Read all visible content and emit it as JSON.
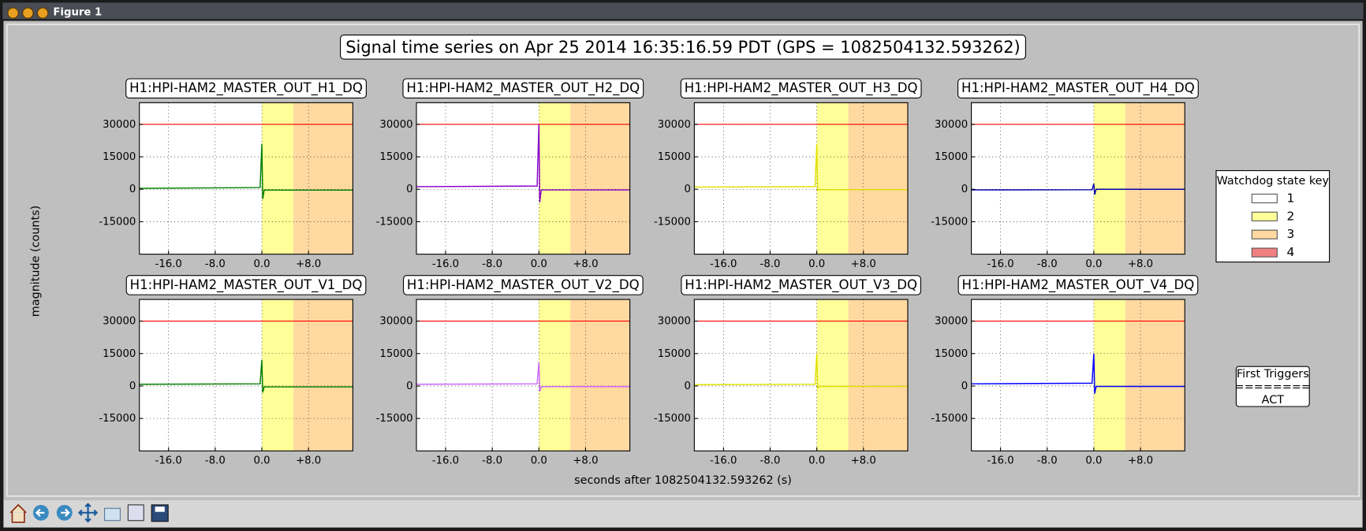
{
  "window": {
    "title": "Figure 1"
  },
  "figure": {
    "title": "Signal time series on Apr 25 2014 16:35:16.59 PDT (GPS = 1082504132.593262)",
    "xlabel": "seconds after 1082504132.593262 (s)",
    "ylabel": "magnitude (counts)",
    "legend": {
      "title": "Watchdog state key",
      "entries": [
        {
          "label": "1",
          "color": "#ffffff"
        },
        {
          "label": "2",
          "color": "#ffff99"
        },
        {
          "label": "3",
          "color": "#ffd9a0"
        },
        {
          "label": "4",
          "color": "#f08080"
        }
      ]
    },
    "annotation": [
      "First Triggers",
      "========",
      "ACT"
    ]
  },
  "chart_data": [
    {
      "type": "line",
      "title": "H1:HPI-HAM2_MASTER_OUT_H1_DQ",
      "x": [
        -21,
        -0.3,
        0,
        0.15,
        0.4,
        15.6
      ],
      "series": [
        {
          "color": "#007f00",
          "values": [
            400,
            800,
            21000,
            -4500,
            -400,
            -400
          ]
        }
      ],
      "xlim": [
        -21,
        15.6
      ],
      "ylim": [
        -30000,
        40000
      ],
      "xticks": [
        {
          "value": -16,
          "label": "-16.0"
        },
        {
          "value": -8,
          "label": "-8.0"
        },
        {
          "value": 0,
          "label": "0.0"
        },
        {
          "value": 8,
          "label": "+8.0"
        }
      ],
      "yticks": [
        -15000,
        0,
        15000,
        30000
      ],
      "grid": true,
      "threshold": 30000,
      "threshold_color": "#ff0000",
      "spans": [
        {
          "start": 0,
          "end": 5.4,
          "color": "#ffff99"
        },
        {
          "start": 5.4,
          "end": 15.6,
          "color": "#ffd9a0"
        }
      ]
    },
    {
      "type": "line",
      "title": "H1:HPI-HAM2_MASTER_OUT_H2_DQ",
      "x": [
        -21,
        -0.3,
        0,
        0.15,
        0.4,
        15.6
      ],
      "series": [
        {
          "color": "#8800cc",
          "values": [
            1200,
            1500,
            30000,
            -6000,
            -300,
            -300
          ]
        }
      ],
      "xlim": [
        -21,
        15.6
      ],
      "ylim": [
        -30000,
        40000
      ],
      "xticks": [
        {
          "value": -16,
          "label": "-16.0"
        },
        {
          "value": -8,
          "label": "-8.0"
        },
        {
          "value": 0,
          "label": "0.0"
        },
        {
          "value": 8,
          "label": "+8.0"
        }
      ],
      "yticks": [
        -15000,
        0,
        15000,
        30000
      ],
      "grid": true,
      "threshold": 30000,
      "threshold_color": "#ff0000",
      "spans": [
        {
          "start": 0,
          "end": 5.4,
          "color": "#ffff99"
        },
        {
          "start": 5.4,
          "end": 15.6,
          "color": "#ffd9a0"
        }
      ]
    },
    {
      "type": "line",
      "title": "H1:HPI-HAM2_MASTER_OUT_H3_DQ",
      "x": [
        -21,
        -0.3,
        0,
        0.15,
        0.4,
        15.6
      ],
      "series": [
        {
          "color": "#e0e000",
          "values": [
            1000,
            1200,
            21000,
            -500,
            -200,
            -200
          ]
        }
      ],
      "xlim": [
        -21,
        15.6
      ],
      "ylim": [
        -30000,
        40000
      ],
      "xticks": [
        {
          "value": -16,
          "label": "-16.0"
        },
        {
          "value": -8,
          "label": "-8.0"
        },
        {
          "value": 0,
          "label": "0.0"
        },
        {
          "value": 8,
          "label": "+8.0"
        }
      ],
      "yticks": [
        -15000,
        0,
        15000,
        30000
      ],
      "grid": true,
      "threshold": 30000,
      "threshold_color": "#ff0000",
      "spans": [
        {
          "start": 0,
          "end": 5.4,
          "color": "#ffff99"
        },
        {
          "start": 5.4,
          "end": 15.6,
          "color": "#ffd9a0"
        }
      ]
    },
    {
      "type": "line",
      "title": "H1:HPI-HAM2_MASTER_OUT_H4_DQ",
      "x": [
        -21,
        -0.3,
        0,
        0.15,
        0.4,
        15.6
      ],
      "series": [
        {
          "color": "#0000aa",
          "values": [
            -300,
            -200,
            2500,
            -2500,
            0,
            0
          ]
        }
      ],
      "xlim": [
        -21,
        15.6
      ],
      "ylim": [
        -30000,
        40000
      ],
      "xticks": [
        {
          "value": -16,
          "label": "-16.0"
        },
        {
          "value": -8,
          "label": "-8.0"
        },
        {
          "value": 0,
          "label": "0.0"
        },
        {
          "value": 8,
          "label": "+8.0"
        }
      ],
      "yticks": [
        -15000,
        0,
        15000,
        30000
      ],
      "grid": true,
      "threshold": 30000,
      "threshold_color": "#ff0000",
      "spans": [
        {
          "start": 0,
          "end": 5.4,
          "color": "#ffff99"
        },
        {
          "start": 5.4,
          "end": 15.6,
          "color": "#ffd9a0"
        }
      ]
    },
    {
      "type": "line",
      "title": "H1:HPI-HAM2_MASTER_OUT_V1_DQ",
      "x": [
        -21,
        -0.3,
        0,
        0.15,
        0.4,
        15.6
      ],
      "series": [
        {
          "color": "#007f00",
          "values": [
            800,
            1000,
            12000,
            -3000,
            -400,
            -400
          ]
        }
      ],
      "xlim": [
        -21,
        15.6
      ],
      "ylim": [
        -30000,
        40000
      ],
      "xticks": [
        {
          "value": -16,
          "label": "-16.0"
        },
        {
          "value": -8,
          "label": "-8.0"
        },
        {
          "value": 0,
          "label": "0.0"
        },
        {
          "value": 8,
          "label": "+8.0"
        }
      ],
      "yticks": [
        -15000,
        0,
        15000,
        30000
      ],
      "grid": true,
      "threshold": 30000,
      "threshold_color": "#ff0000",
      "spans": [
        {
          "start": 0,
          "end": 5.4,
          "color": "#ffff99"
        },
        {
          "start": 5.4,
          "end": 15.6,
          "color": "#ffd9a0"
        }
      ]
    },
    {
      "type": "line",
      "title": "H1:HPI-HAM2_MASTER_OUT_V2_DQ",
      "x": [
        -21,
        -0.3,
        0,
        0.15,
        0.4,
        15.6
      ],
      "series": [
        {
          "color": "#cc66ff",
          "values": [
            800,
            1000,
            11000,
            -2500,
            -300,
            -300
          ]
        }
      ],
      "xlim": [
        -21,
        15.6
      ],
      "ylim": [
        -30000,
        40000
      ],
      "xticks": [
        {
          "value": -16,
          "label": "-16.0"
        },
        {
          "value": -8,
          "label": "-8.0"
        },
        {
          "value": 0,
          "label": "0.0"
        },
        {
          "value": 8,
          "label": "+8.0"
        }
      ],
      "yticks": [
        -15000,
        0,
        15000,
        30000
      ],
      "grid": true,
      "threshold": 30000,
      "threshold_color": "#ff0000",
      "spans": [
        {
          "start": 0,
          "end": 5.4,
          "color": "#ffff99"
        },
        {
          "start": 5.4,
          "end": 15.6,
          "color": "#ffd9a0"
        }
      ]
    },
    {
      "type": "line",
      "title": "H1:HPI-HAM2_MASTER_OUT_V3_DQ",
      "x": [
        -21,
        -0.3,
        0,
        0.15,
        0.4,
        15.6
      ],
      "series": [
        {
          "color": "#e0e000",
          "values": [
            600,
            800,
            15000,
            -1000,
            -200,
            -200
          ]
        }
      ],
      "xlim": [
        -21,
        15.6
      ],
      "ylim": [
        -30000,
        40000
      ],
      "xticks": [
        {
          "value": -16,
          "label": "-16.0"
        },
        {
          "value": -8,
          "label": "-8.0"
        },
        {
          "value": 0,
          "label": "0.0"
        },
        {
          "value": 8,
          "label": "+8.0"
        }
      ],
      "yticks": [
        -15000,
        0,
        15000,
        30000
      ],
      "grid": true,
      "threshold": 30000,
      "threshold_color": "#ff0000",
      "spans": [
        {
          "start": 0,
          "end": 5.4,
          "color": "#ffff99"
        },
        {
          "start": 5.4,
          "end": 15.6,
          "color": "#ffd9a0"
        }
      ]
    },
    {
      "type": "line",
      "title": "H1:HPI-HAM2_MASTER_OUT_V4_DQ",
      "x": [
        -21,
        -0.3,
        0,
        0.15,
        0.4,
        15.6
      ],
      "series": [
        {
          "color": "#0000ff",
          "values": [
            1000,
            1300,
            15000,
            -3500,
            -200,
            -200
          ]
        }
      ],
      "xlim": [
        -21,
        15.6
      ],
      "ylim": [
        -30000,
        40000
      ],
      "xticks": [
        {
          "value": -16,
          "label": "-16.0"
        },
        {
          "value": -8,
          "label": "-8.0"
        },
        {
          "value": 0,
          "label": "0.0"
        },
        {
          "value": 8,
          "label": "+8.0"
        }
      ],
      "yticks": [
        -15000,
        0,
        15000,
        30000
      ],
      "grid": true,
      "threshold": 30000,
      "threshold_color": "#ff0000",
      "spans": [
        {
          "start": 0,
          "end": 5.4,
          "color": "#ffff99"
        },
        {
          "start": 5.4,
          "end": 15.6,
          "color": "#ffd9a0"
        }
      ]
    }
  ]
}
